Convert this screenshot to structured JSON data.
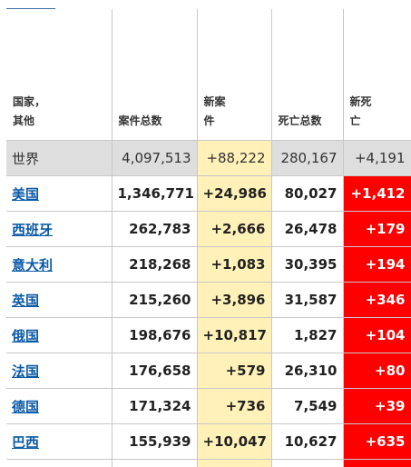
{
  "headers": {
    "country": "国家，其他",
    "total_cases": "案件总数",
    "new_cases": "新案件",
    "total_deaths": "死亡总数",
    "new_deaths": "新死亡"
  },
  "world": {
    "name": "世界",
    "total_cases": "4,097,513",
    "new_cases": "+88,222",
    "total_deaths": "280,167",
    "new_deaths": "+4,191"
  },
  "rows": [
    {
      "name": "美国",
      "total_cases": "1,346,771",
      "new_cases": "+24,986",
      "total_deaths": "80,027",
      "new_deaths": "+1,412"
    },
    {
      "name": "西班牙",
      "total_cases": "262,783",
      "new_cases": "+2,666",
      "total_deaths": "26,478",
      "new_deaths": "+179"
    },
    {
      "name": "意大利",
      "total_cases": "218,268",
      "new_cases": "+1,083",
      "total_deaths": "30,395",
      "new_deaths": "+194"
    },
    {
      "name": "英国",
      "total_cases": "215,260",
      "new_cases": "+3,896",
      "total_deaths": "31,587",
      "new_deaths": "+346"
    },
    {
      "name": "俄国",
      "total_cases": "198,676",
      "new_cases": "+10,817",
      "total_deaths": "1,827",
      "new_deaths": "+104"
    },
    {
      "name": "法国",
      "total_cases": "176,658",
      "new_cases": "+579",
      "total_deaths": "26,310",
      "new_deaths": "+80"
    },
    {
      "name": "德国",
      "total_cases": "171,324",
      "new_cases": "+736",
      "total_deaths": "7,549",
      "new_deaths": "+39"
    },
    {
      "name": "巴西",
      "total_cases": "155,939",
      "new_cases": "+10,047",
      "total_deaths": "10,627",
      "new_deaths": "+635"
    }
  ],
  "colors": {
    "new_cases_bg": "#fff1b8",
    "new_deaths_bg": "#ff0000",
    "world_row_bg": "#dedede",
    "link": "#0b5aa6"
  }
}
